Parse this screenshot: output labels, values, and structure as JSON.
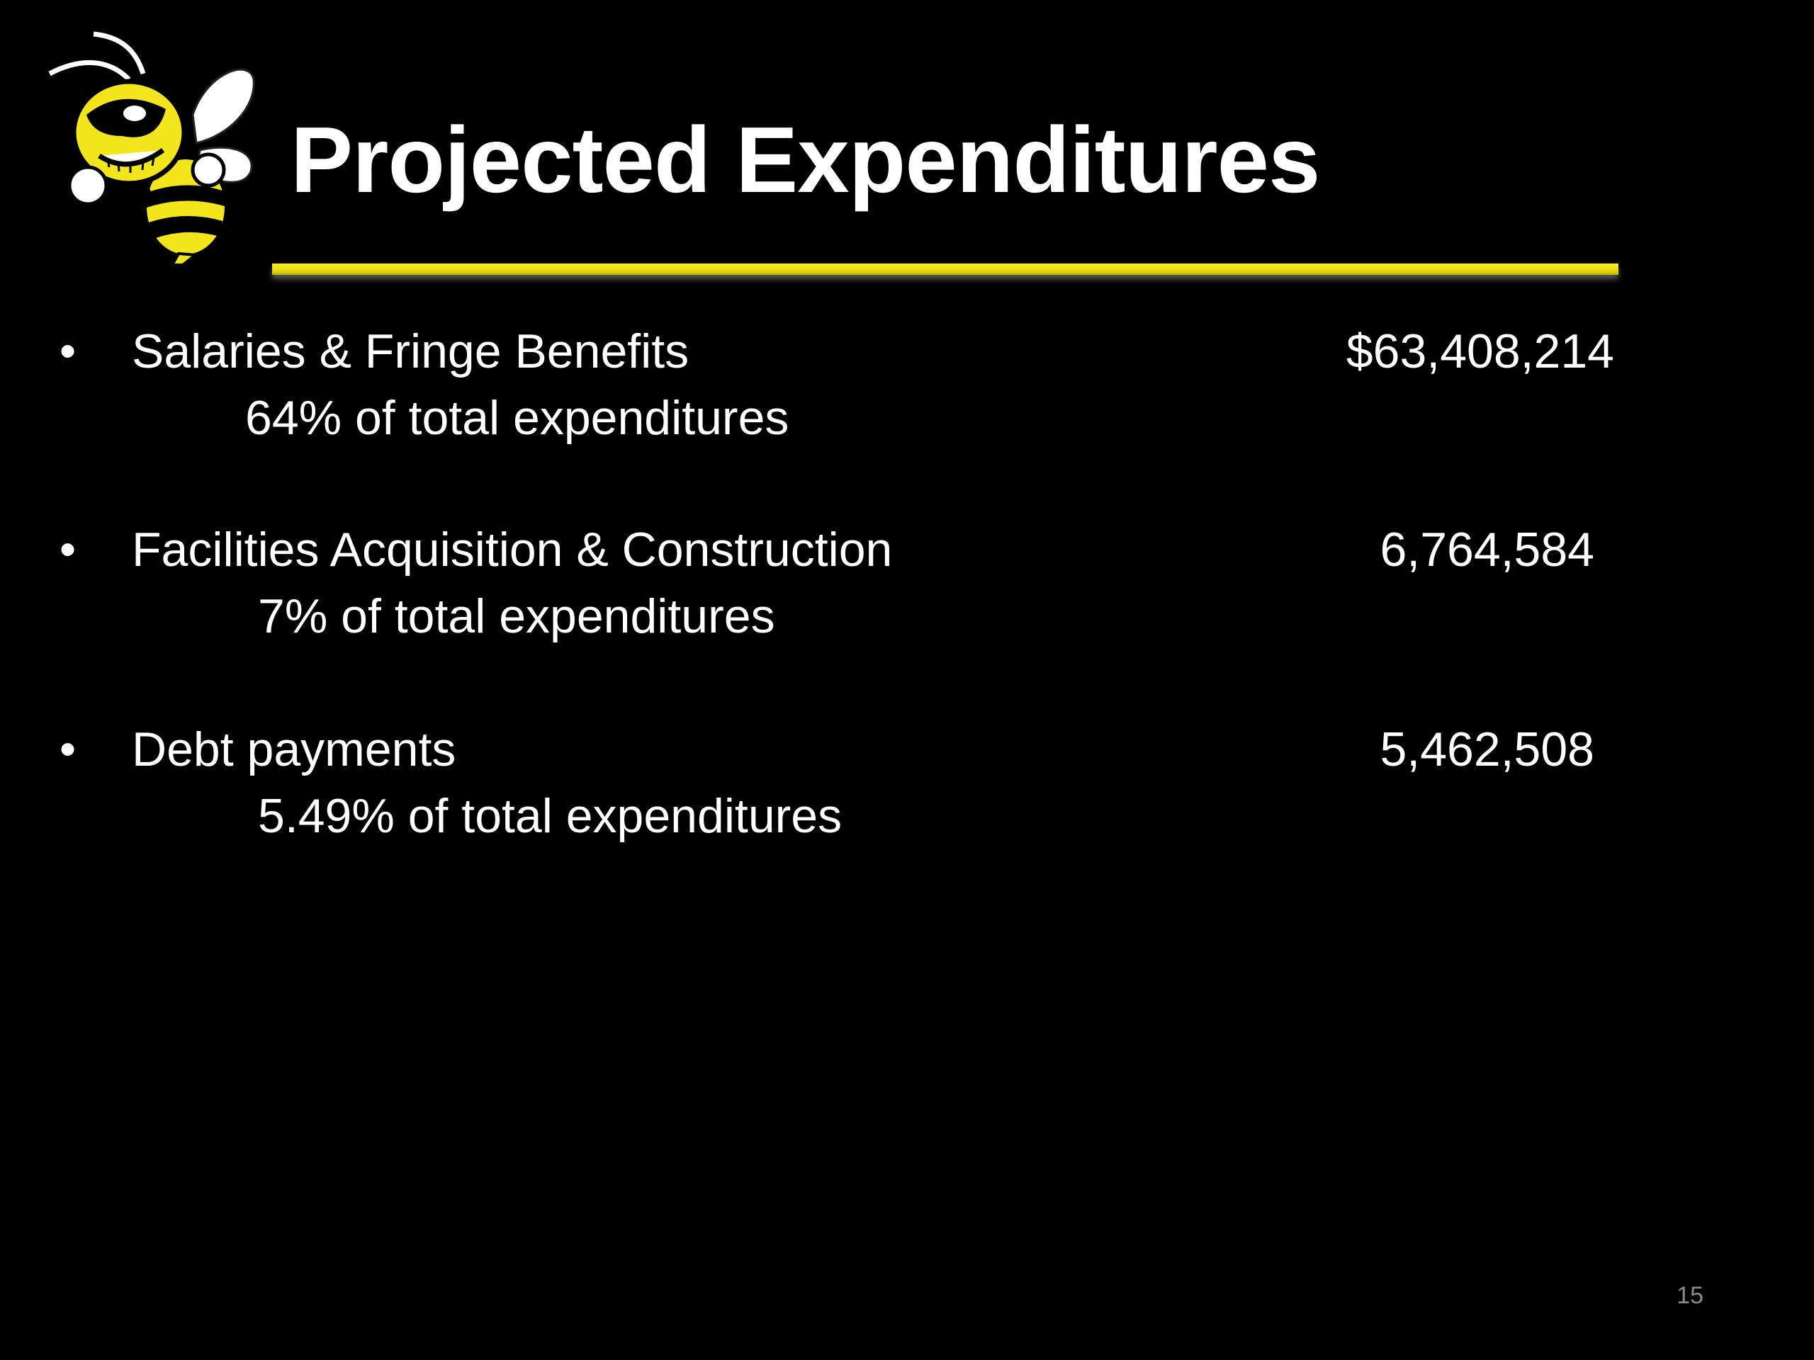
{
  "slide": {
    "title": "Projected Expenditures",
    "page_number": "15",
    "colors": {
      "background": "#000000",
      "text": "#ffffff",
      "accent": "#f0e41a"
    },
    "mascot_icon": "yellow-jacket-mascot-icon",
    "items": [
      {
        "label": "Salaries & Fringe Benefits",
        "amount": "$63,408,214",
        "note": "64% of total expenditures"
      },
      {
        "label": "Facilities Acquisition & Construction",
        "amount": "6,764,584",
        "note": "7% of total expenditures"
      },
      {
        "label": "Debt payments",
        "amount": "5,462,508",
        "note": "5.49% of total expenditures"
      }
    ]
  }
}
